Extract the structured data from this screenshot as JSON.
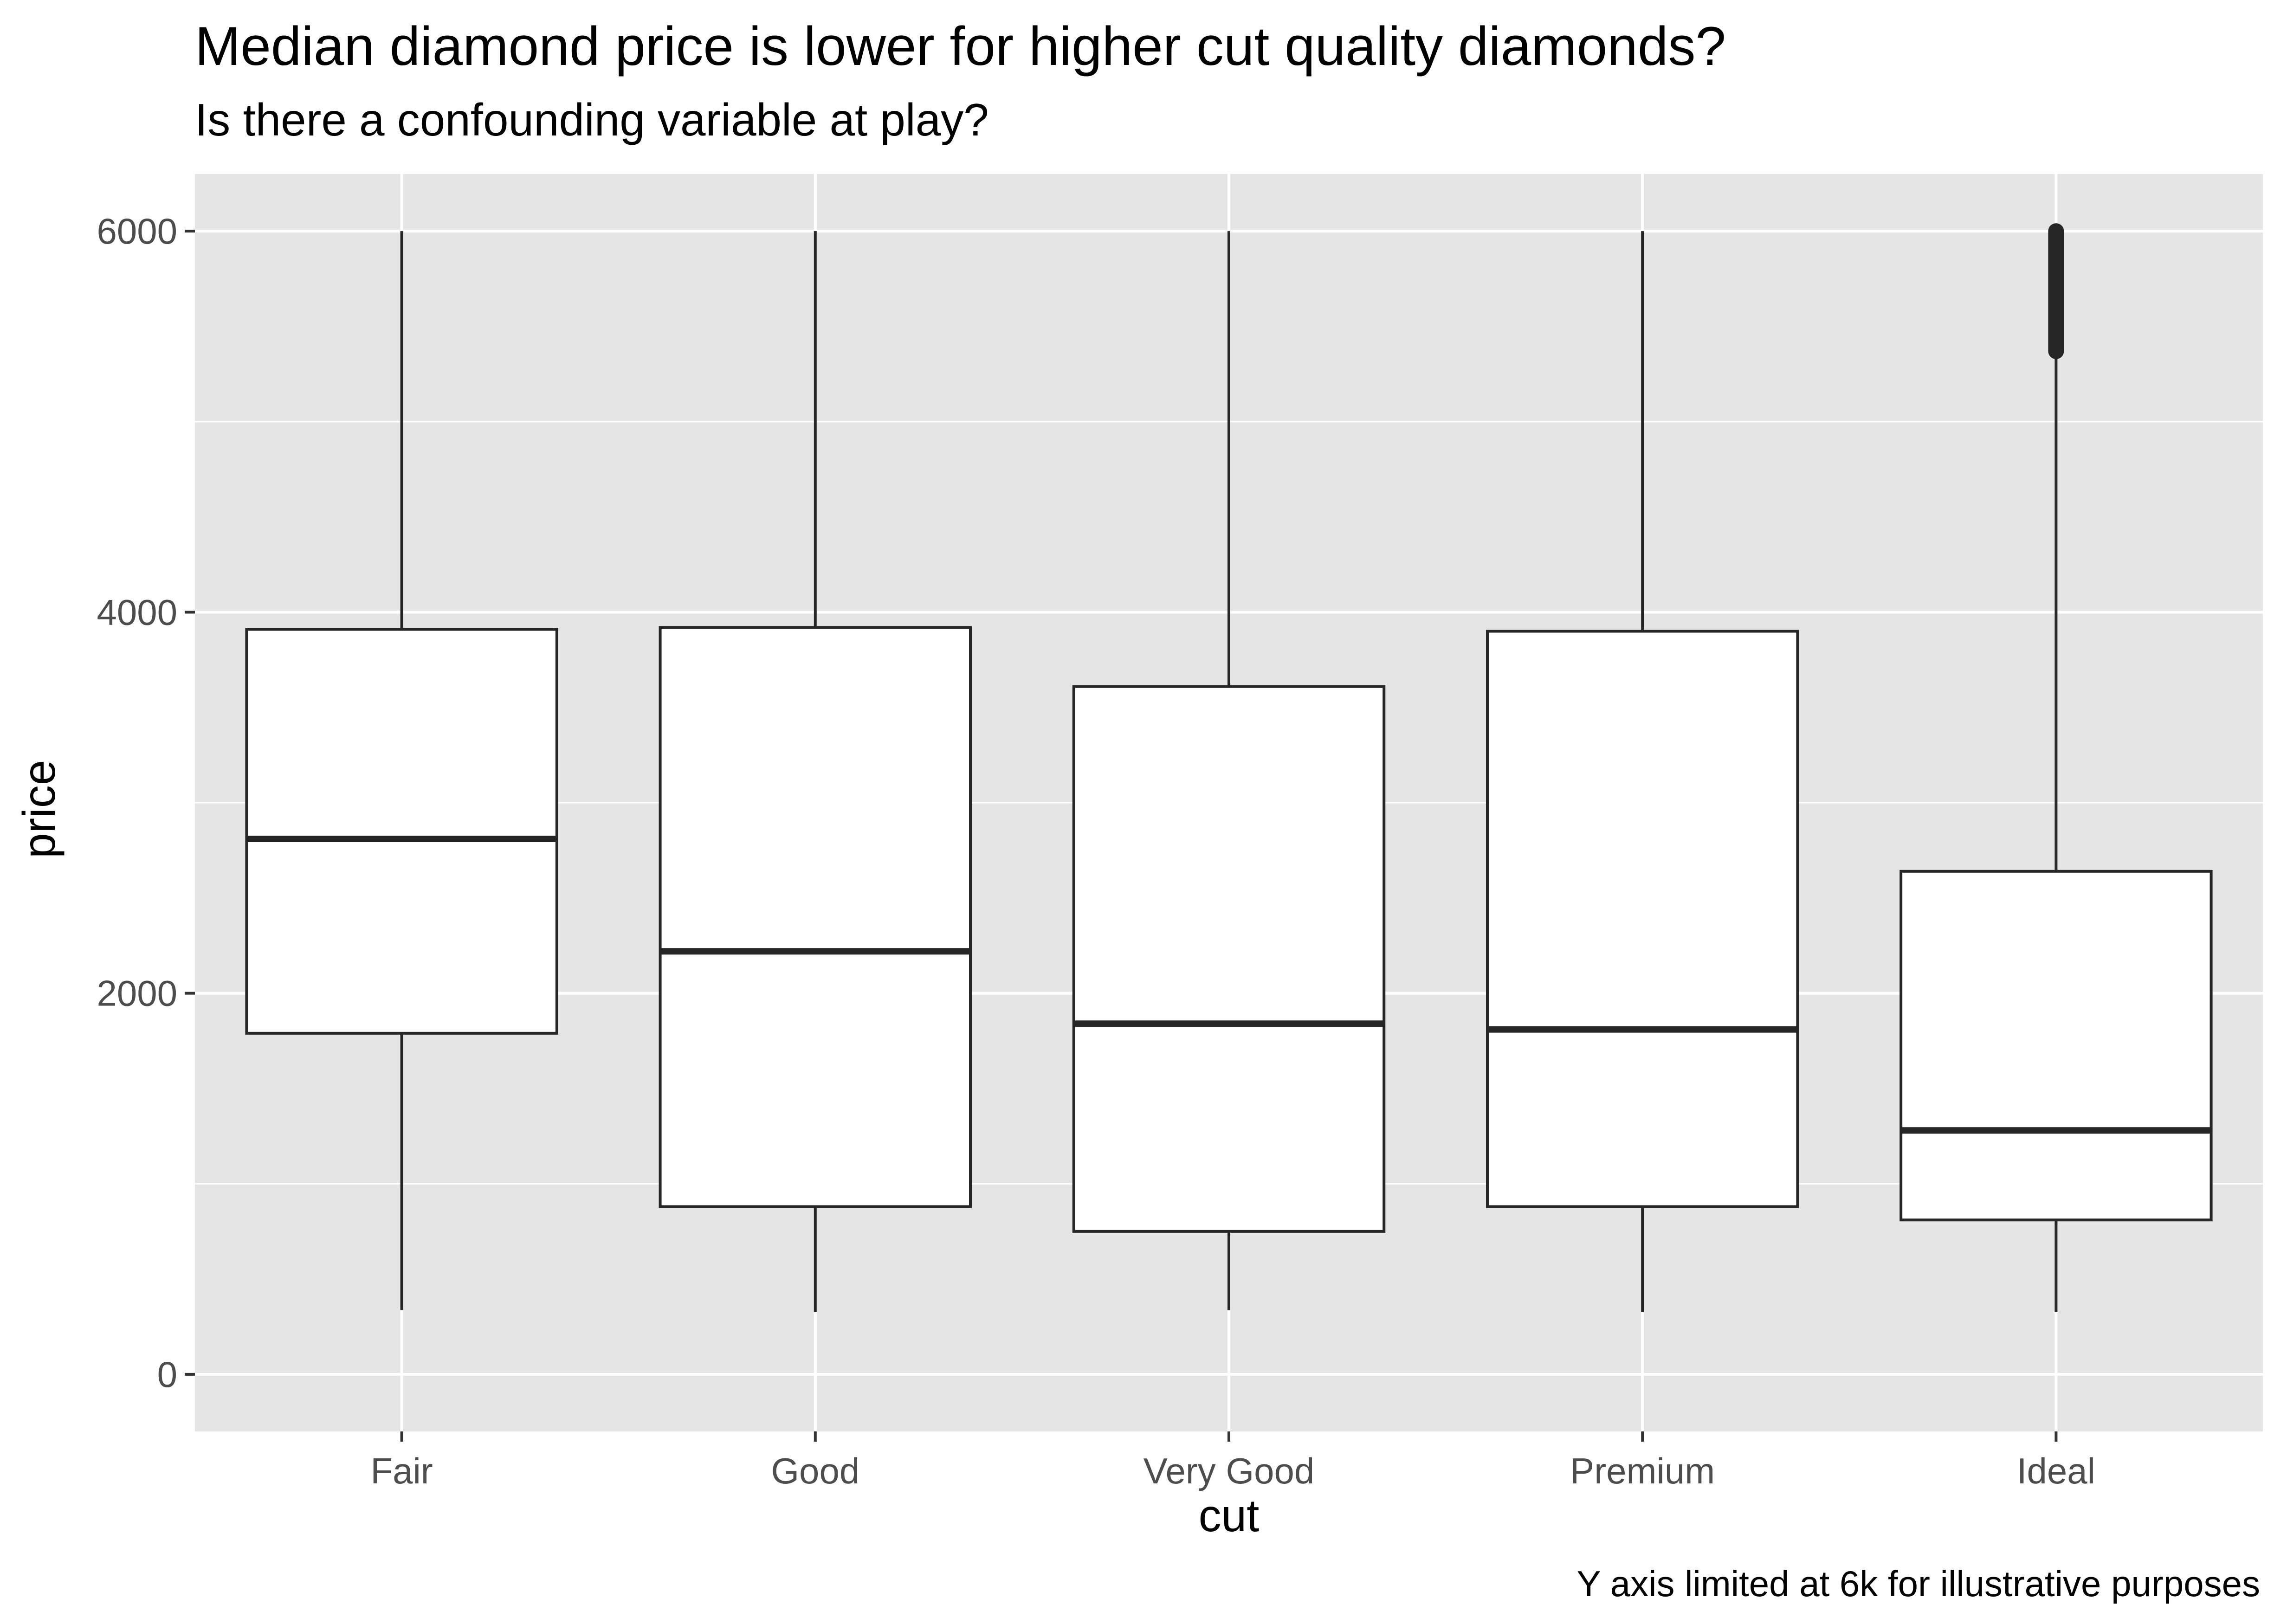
{
  "chart_data": {
    "type": "boxplot",
    "title": "Median diamond price is lower for higher cut quality diamonds?",
    "subtitle": "Is there a confounding variable at play?",
    "caption": "Y axis limited at 6k for illustrative purposes",
    "xlabel": "cut",
    "ylabel": "price",
    "categories": [
      "Fair",
      "Good",
      "Very Good",
      "Premium",
      "Ideal"
    ],
    "ylim": [
      -300,
      6300
    ],
    "yticks": [
      0,
      2000,
      4000,
      6000
    ],
    "grid": true,
    "boxes": [
      {
        "category": "Fair",
        "lower_whisker": 337,
        "q1": 1790,
        "median": 2810,
        "q3": 3910,
        "upper_whisker": 6000,
        "outliers_range": null
      },
      {
        "category": "Good",
        "lower_whisker": 327,
        "q1": 880,
        "median": 2220,
        "q3": 3920,
        "upper_whisker": 6000,
        "outliers_range": null
      },
      {
        "category": "Very Good",
        "lower_whisker": 336,
        "q1": 750,
        "median": 1840,
        "q3": 3610,
        "upper_whisker": 6000,
        "outliers_range": null
      },
      {
        "category": "Premium",
        "lower_whisker": 326,
        "q1": 880,
        "median": 1810,
        "q3": 3900,
        "upper_whisker": 6000,
        "outliers_range": null
      },
      {
        "category": "Ideal",
        "lower_whisker": 326,
        "q1": 810,
        "median": 1280,
        "q3": 2640,
        "upper_whisker": 5370,
        "outliers_range": [
          5370,
          6000
        ]
      }
    ],
    "colors": {
      "panel_background": "#e5e5e5",
      "grid": "#ffffff",
      "box_fill": "#ffffff",
      "box_line": "#262626",
      "tick_text": "#4d4d4d"
    }
  }
}
